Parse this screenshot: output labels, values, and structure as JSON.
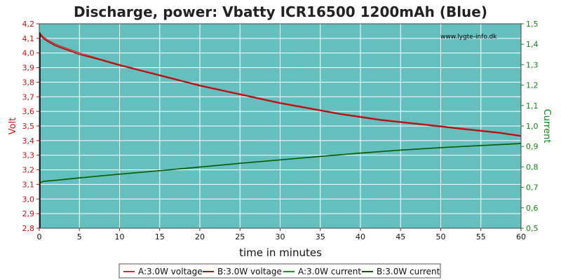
{
  "chart_data": {
    "type": "line",
    "title": "Discharge, power: Vbatty ICR16500 1200mAh (Blue)",
    "xlabel": "time in minutes",
    "ylabel": "Volt",
    "y2label": "Current",
    "watermark": "www.lygte-info.dk",
    "xlim": [
      0,
      60
    ],
    "ylim": [
      2.8,
      4.2
    ],
    "y2lim": [
      0.5,
      1.5
    ],
    "x_ticks": [
      "0",
      "5",
      "10",
      "15",
      "20",
      "25",
      "30",
      "35",
      "40",
      "45",
      "50",
      "55",
      "60"
    ],
    "y_ticks": [
      "2,8",
      "2,9",
      "3,0",
      "3,1",
      "3,2",
      "3,3",
      "3,4",
      "3,5",
      "3,6",
      "3,7",
      "3,8",
      "3,9",
      "4,0",
      "4,1",
      "4,2"
    ],
    "y2_ticks": [
      "0,5",
      "0,6",
      "0,7",
      "0,8",
      "0,9",
      "1,0",
      "1,1",
      "1,2",
      "1,3",
      "1,4",
      "1,5"
    ],
    "grid": true,
    "legend_position": "bottom",
    "colors": {
      "plot_bg": "#66bfbf",
      "grid": "#ffffff",
      "voltage_a": "#e02020",
      "voltage_b": "#a01010",
      "current_a": "#1a9a1a",
      "current_b": "#0a5a0a",
      "left_axis": "#cc1111",
      "right_axis": "#118811"
    },
    "series": [
      {
        "name": "A:3.0W voltage",
        "axis": "left",
        "x": [
          0,
          0.5,
          1,
          2,
          3,
          5,
          7.5,
          10,
          12.5,
          15,
          17.5,
          20,
          22.5,
          25,
          27.5,
          30,
          32.5,
          35,
          37.5,
          40,
          42.5,
          45,
          47.5,
          50,
          52.5,
          55,
          57.5,
          60
        ],
        "y": [
          4.14,
          4.11,
          4.09,
          4.06,
          4.04,
          4.0,
          3.96,
          3.92,
          3.885,
          3.85,
          3.815,
          3.78,
          3.75,
          3.72,
          3.69,
          3.66,
          3.635,
          3.61,
          3.585,
          3.565,
          3.545,
          3.53,
          3.515,
          3.5,
          3.485,
          3.47,
          3.455,
          3.435
        ]
      },
      {
        "name": "B:3.0W voltage",
        "axis": "left",
        "x": [
          0,
          0.5,
          1,
          2,
          3,
          5,
          7.5,
          10,
          12.5,
          15,
          17.5,
          20,
          22.5,
          25,
          27.5,
          30,
          32.5,
          35,
          37.5,
          40,
          42.5,
          45,
          47.5,
          50,
          52.5,
          55,
          57.5,
          60
        ],
        "y": [
          4.13,
          4.1,
          4.08,
          4.05,
          4.03,
          3.99,
          3.955,
          3.915,
          3.88,
          3.845,
          3.81,
          3.775,
          3.745,
          3.715,
          3.685,
          3.655,
          3.63,
          3.605,
          3.58,
          3.56,
          3.54,
          3.525,
          3.51,
          3.495,
          3.48,
          3.465,
          3.45,
          3.43
        ]
      },
      {
        "name": "A:3.0W current",
        "axis": "right",
        "x": [
          0,
          0.5,
          2,
          5,
          10,
          15,
          20,
          25,
          30,
          35,
          40,
          45,
          50,
          55,
          60
        ],
        "y": [
          0.72,
          0.73,
          0.735,
          0.747,
          0.765,
          0.782,
          0.8,
          0.818,
          0.835,
          0.852,
          0.868,
          0.883,
          0.895,
          0.905,
          0.915
        ]
      },
      {
        "name": "B:3.0W current",
        "axis": "right",
        "x": [
          0,
          0.5,
          2,
          5,
          10,
          15,
          20,
          25,
          30,
          35,
          40,
          45,
          50,
          55,
          60
        ],
        "y": [
          0.72,
          0.729,
          0.734,
          0.746,
          0.764,
          0.781,
          0.799,
          0.817,
          0.834,
          0.851,
          0.867,
          0.882,
          0.894,
          0.904,
          0.914
        ]
      }
    ]
  }
}
